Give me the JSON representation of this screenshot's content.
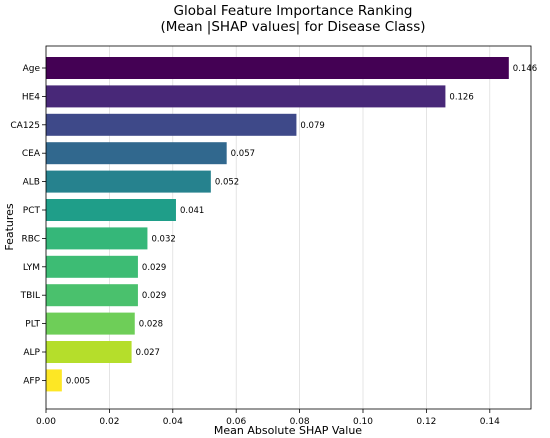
{
  "chart_data": {
    "type": "bar",
    "orientation": "horizontal",
    "title": "Global Feature Importance Ranking",
    "subtitle": "(Mean |SHAP values| for Disease Class)",
    "xlabel": "Mean Absolute SHAP Value",
    "ylabel": "Features",
    "xlim": [
      0.0,
      0.153
    ],
    "xticks": [
      0.0,
      0.02,
      0.04,
      0.06,
      0.08,
      0.1,
      0.12,
      0.14
    ],
    "xtick_labels": [
      "0.00",
      "0.02",
      "0.04",
      "0.06",
      "0.08",
      "0.10",
      "0.12",
      "0.14"
    ],
    "grid": "x",
    "categories": [
      "Age",
      "HE4",
      "CA125",
      "CEA",
      "ALB",
      "PCT",
      "RBC",
      "LYM",
      "TBIL",
      "PLT",
      "ALP",
      "AFP"
    ],
    "values": [
      0.146,
      0.126,
      0.079,
      0.057,
      0.052,
      0.041,
      0.032,
      0.029,
      0.029,
      0.028,
      0.027,
      0.005
    ],
    "value_labels": [
      "0.146",
      "0.126",
      "0.079",
      "0.057",
      "0.052",
      "0.041",
      "0.032",
      "0.029",
      "0.029",
      "0.028",
      "0.027",
      "0.005"
    ],
    "colors": [
      "#440154",
      "#482878",
      "#3e4989",
      "#31688e",
      "#26828e",
      "#1f9e89",
      "#35b779",
      "#3dbc74",
      "#4ac16d",
      "#6ece58",
      "#b5de2b",
      "#fde725"
    ]
  }
}
